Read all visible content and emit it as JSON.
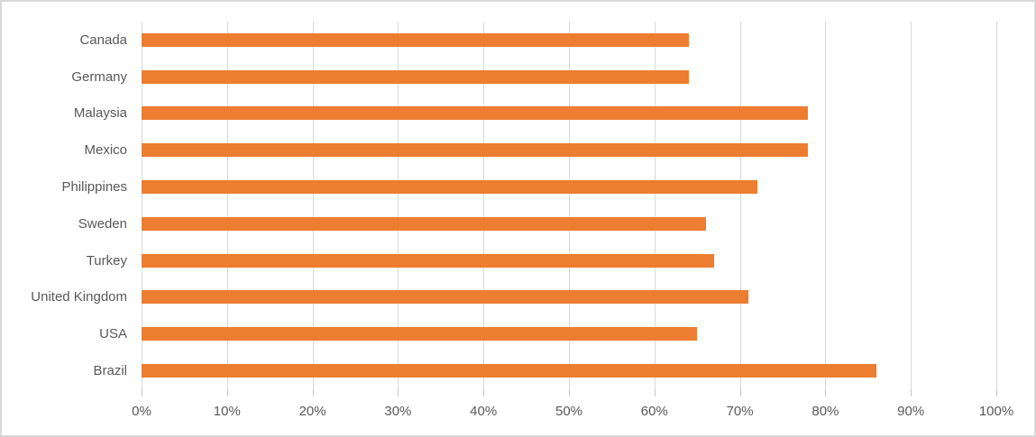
{
  "chart_data": {
    "type": "bar",
    "orientation": "horizontal",
    "title": "",
    "xlabel": "",
    "ylabel": "",
    "categories": [
      "Canada",
      "Germany",
      "Malaysia",
      "Mexico",
      "Philippines",
      "Sweden",
      "Turkey",
      "United Kingdom",
      "USA",
      "Brazil"
    ],
    "values": [
      64,
      64,
      78,
      78,
      72,
      66,
      67,
      71,
      65,
      86
    ],
    "value_unit": "%",
    "xlim": [
      0,
      100
    ],
    "x_tick_labels": [
      "0%",
      "10%",
      "20%",
      "30%",
      "40%",
      "50%",
      "60%",
      "70%",
      "80%",
      "90%",
      "100%"
    ],
    "grid": true,
    "legend": false,
    "colors": {
      "bar": "#ED7D31",
      "gridline": "#D9D9D9",
      "tick": "#C6C6C6",
      "text": "#595959",
      "frame_border": "#D9D9D9"
    }
  }
}
